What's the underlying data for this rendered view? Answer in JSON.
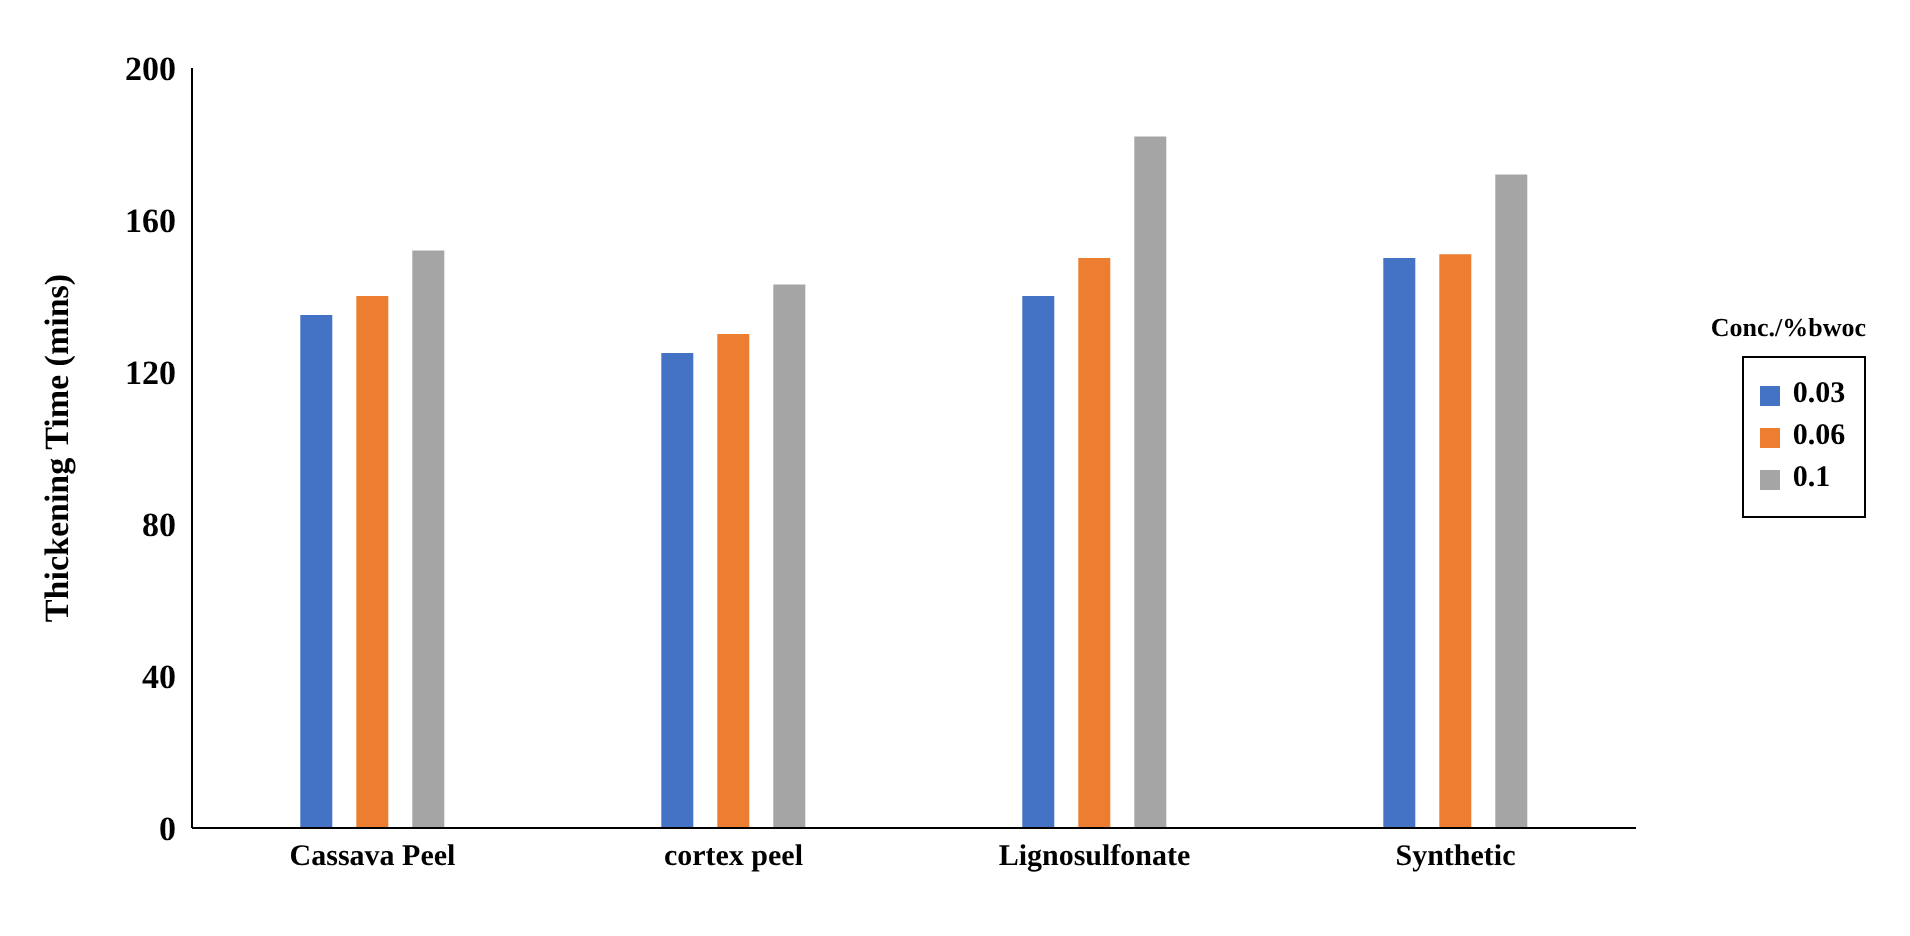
{
  "chart_data": {
    "type": "bar",
    "ylabel": "Thickening  Time  (mins)",
    "legend_title": "Conc./%bwoc",
    "categories": [
      "Cassava Peel",
      "cortex peel",
      "Lignosulfonate",
      "Synthetic"
    ],
    "series": [
      {
        "name": "0.03",
        "color": "#4472c4",
        "values": [
          135,
          125,
          140,
          150
        ]
      },
      {
        "name": "0.06",
        "color": "#ed7d31",
        "values": [
          140,
          130,
          150,
          151
        ]
      },
      {
        "name": "0.1",
        "color": "#a5a5a5",
        "values": [
          152,
          143,
          182,
          172
        ]
      }
    ],
    "ylim": [
      0,
      200
    ],
    "yticks": [
      0,
      40,
      80,
      120,
      160,
      200
    ],
    "grid": false,
    "legend": "right"
  }
}
